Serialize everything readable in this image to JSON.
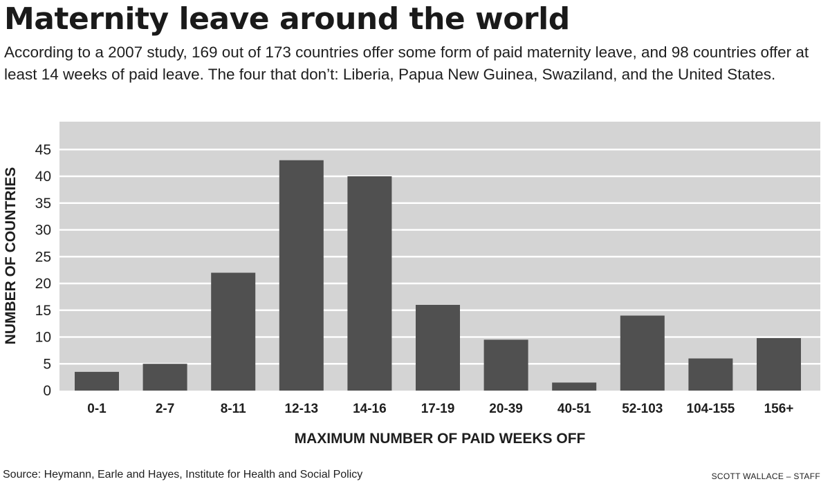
{
  "header": {
    "title": "Maternity leave around the world",
    "subtitle": "According to a 2007 study, 169 out of 173 countries offer some form of paid maternity leave, and 98 countries offer at least 14 weeks of paid leave. The four that don’t: Liberia, Papua New Guinea, Swaziland, and the United States."
  },
  "chart_data": {
    "type": "bar",
    "categories": [
      "0-1",
      "2-7",
      "8-11",
      "12-13",
      "14-16",
      "17-19",
      "20-39",
      "40-51",
      "52-103",
      "104-155",
      "156+"
    ],
    "values": [
      3.5,
      5,
      22,
      43,
      40,
      16,
      9.5,
      1.5,
      14,
      6,
      9.8
    ],
    "xlabel": "MAXIMUM NUMBER OF PAID WEEKS OFF",
    "ylabel": "NUMBER OF COUNTRIES",
    "ylim": [
      0,
      50
    ],
    "yticks": [
      0,
      5,
      10,
      15,
      20,
      25,
      30,
      35,
      40,
      45
    ],
    "grid": true,
    "colors": {
      "plot_background": "#d4d4d4",
      "bar": "#505050",
      "gridline": "#ffffff"
    }
  },
  "footer": {
    "source": "Source: Heymann, Earle and Hayes, Institute for Health and Social Policy",
    "credit": "SCOTT WALLACE – STAFF"
  }
}
